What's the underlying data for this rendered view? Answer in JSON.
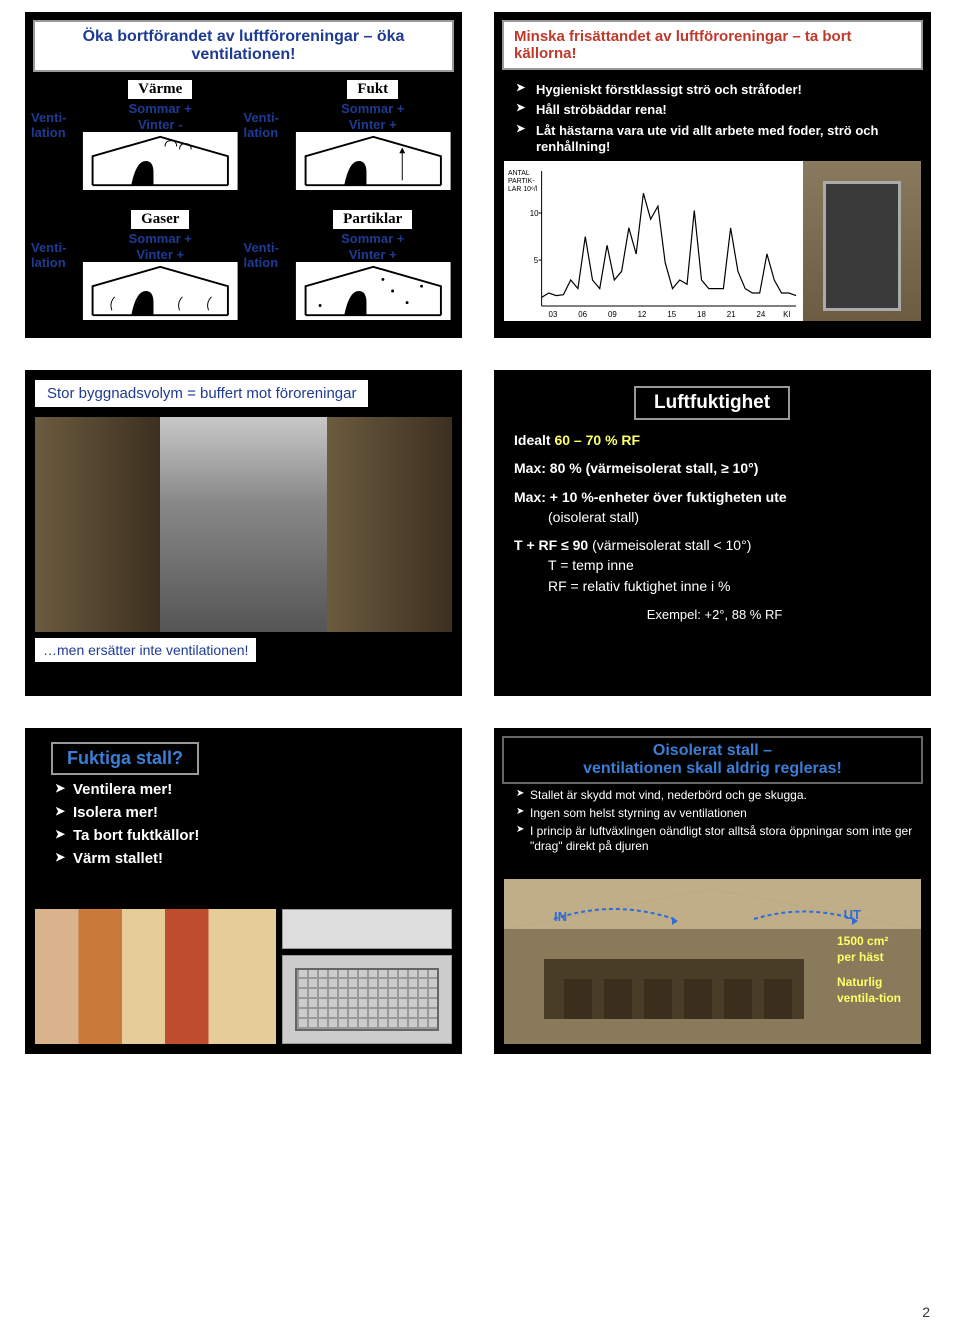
{
  "slide1": {
    "title": "Öka bortförandet av luftföroreningar – öka ventilationen!",
    "ventLabel": "Venti-lation",
    "cells": [
      {
        "head": "Värme",
        "s": "Sommar +",
        "v": "Vinter -"
      },
      {
        "head": "Fukt",
        "s": "Sommar +",
        "v": "Vinter +"
      },
      {
        "head": "Gaser",
        "s": "Sommar +",
        "v": "Vinter +"
      },
      {
        "head": "Partiklar",
        "s": "Sommar +",
        "v": "Vinter +"
      }
    ]
  },
  "slide2": {
    "title": "Minska frisättandet av luftföroreningar – ta bort källorna!",
    "bullets": [
      "Hygieniskt förstklassigt strö och stråfoder!",
      "Håll ströbäddar rena!",
      "Låt hästarna vara ute vid allt arbete med foder, strö och renhållning!"
    ],
    "chart": {
      "ylabel": "ANTAL PARTIK-LAR 10⁶/l",
      "yticks": [
        5,
        10
      ],
      "xlabels": [
        "03",
        "06",
        "09",
        "12",
        "15",
        "18",
        "21",
        "24",
        "Kl"
      ],
      "line_color": "#000000",
      "bg": "#ffffff",
      "points": [
        1,
        1.5,
        1.2,
        1.3,
        3,
        2,
        8,
        3,
        2,
        7,
        3,
        4,
        9,
        6,
        13,
        10,
        11.5,
        5,
        2,
        3,
        2.5,
        11,
        3,
        2,
        2,
        2,
        9,
        4,
        2,
        1.5,
        1.5,
        6,
        3,
        1.5,
        1.5,
        1.2
      ]
    }
  },
  "slide3": {
    "caption_top": "Stor byggnadsvolym = buffert mot föroreningar",
    "caption_bottom": "…men ersätter inte ventilationen!"
  },
  "slide4": {
    "title": "Luftfuktighet",
    "ideal": "Idealt 60 – 70 % RF",
    "max1": "Max: 80 % (värmeisolerat stall, ≥ 10°)",
    "max2a": "Max: + 10 %-enheter över fuktigheten ute",
    "max2b": "(oisolerat stall)",
    "trf": "T + RF ≤ 90 (värmeisolerat stall < 10°)",
    "trf_t": "T = temp inne",
    "trf_rf": "RF = relativ fuktighet inne i %",
    "example": "Exempel: +2°, 88 % RF"
  },
  "slide5": {
    "title": "Fuktiga stall?",
    "bullets": [
      "Ventilera mer!",
      "Isolera mer!",
      "Ta bort fuktkällor!",
      "Värm stallet!"
    ]
  },
  "slide6": {
    "title": "Oisolerat stall – ventilationen skall aldrig regleras!",
    "bullets": [
      "Stallet är skydd mot vind, nederbörd och ge skugga.",
      "Ingen som helst styrning av ventilationen",
      "I princip är luftväxlingen oändligt stor alltså stora öppningar som inte ger \"drag\" direkt på djuren"
    ],
    "in": "IN",
    "out": "UT",
    "side1": "1500 cm²",
    "side2": "per häst",
    "side3": "Naturlig ventila-tion"
  },
  "pageNum": "2"
}
